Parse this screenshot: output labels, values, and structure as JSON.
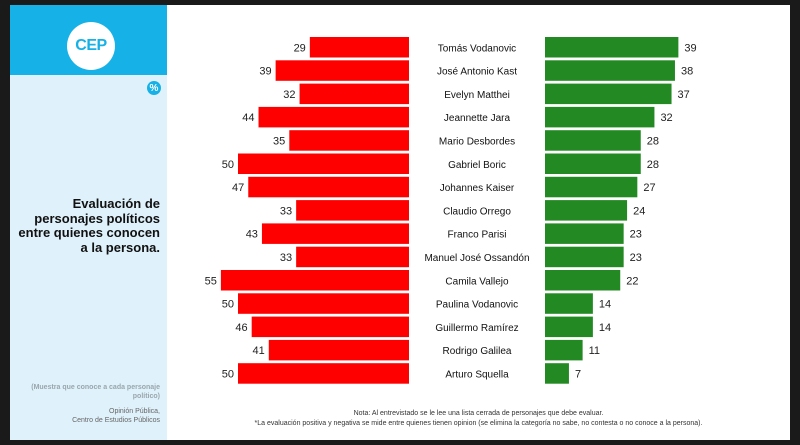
{
  "brand": {
    "logo_text": "CEP",
    "badge": "%"
  },
  "sidebar": {
    "title": "Evaluación de personajes políticos entre quienes conocen a la persona.",
    "sample_note": "(Muestra que conoce a cada personaje político)",
    "source_line1": "Opinión Pública,",
    "source_line2": "Centro de Estudios Públicos"
  },
  "footnotes": {
    "note1": "Nota: Al entrevistado se le lee una lista cerrada de personajes que debe evaluar.",
    "note2": "*La evaluación positiva y negativa se mide entre quienes tienen opinion (se elimina la categoría no sabe, no contesta o no conoce a la persona)."
  },
  "colors": {
    "negative": "#ff0000",
    "positive": "#238a23",
    "accent": "#16b1e6"
  },
  "chart_data": {
    "type": "bar",
    "orientation": "diverging-horizontal",
    "categories": [
      "Tomás Vodanovic",
      "José Antonio Kast",
      "Evelyn Matthei",
      "Jeannette Jara",
      "Mario Desbordes",
      "Gabriel Boric",
      "Johannes Kaiser",
      "Claudio Orrego",
      "Franco Parisi",
      "Manuel José Ossandón",
      "Camila Vallejo",
      "Paulina Vodanovic",
      "Guillermo Ramírez",
      "Rodrigo Galilea",
      "Arturo Squella"
    ],
    "series": [
      {
        "values": [
          29,
          39,
          32,
          44,
          35,
          50,
          47,
          33,
          43,
          33,
          55,
          50,
          46,
          41,
          50
        ],
        "color": "#ff0000"
      },
      {
        "values": [
          39,
          38,
          37,
          32,
          28,
          28,
          27,
          24,
          23,
          23,
          22,
          14,
          14,
          11,
          7
        ],
        "color": "#238a23"
      }
    ],
    "xlim": [
      0,
      55
    ],
    "unit": "%",
    "grid": false,
    "legend": "none"
  }
}
